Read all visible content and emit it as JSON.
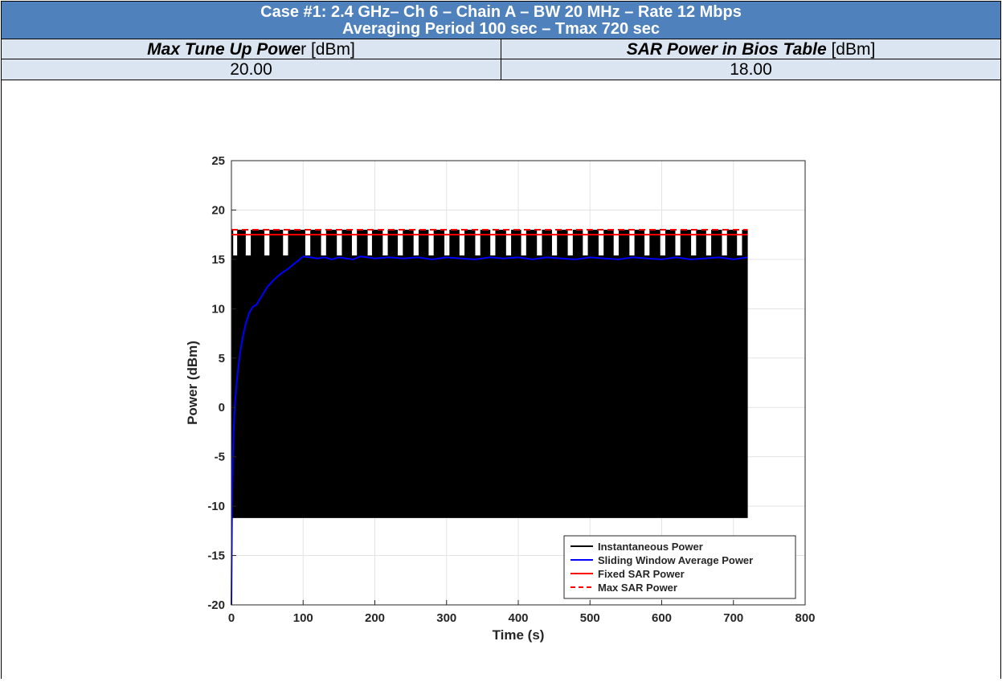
{
  "header": {
    "line1": "Case #1: 2.4 GHz– Ch 6 – Chain A – BW 20 MHz – Rate 12 Mbps",
    "line2": "Averaging Period 100 sec – Tmax 720 sec"
  },
  "columns": {
    "left_label_bold": "Max Tune Up Powe",
    "left_label_rest": "r [dBm]",
    "right_label_bold": "SAR Power in Bios Table",
    "right_label_rest": " [dBm]"
  },
  "values": {
    "left": "20.00",
    "right": "18.00"
  },
  "chart_data": {
    "type": "line",
    "xlabel": "Time (s)",
    "ylabel": "Power (dBm)",
    "xlim": [
      0,
      800
    ],
    "ylim": [
      -20,
      25
    ],
    "xticks": [
      "0",
      "100",
      "200",
      "300",
      "400",
      "500",
      "600",
      "700",
      "800"
    ],
    "yticks": [
      "-20",
      "-15",
      "-10",
      "-5",
      "0",
      "5",
      "10",
      "15",
      "20",
      "25"
    ],
    "grid": true,
    "legend_position": "bottom-right",
    "series": [
      {
        "name": "Instantaneous Power",
        "color": "#000000",
        "style": "solid",
        "description": "rapid toggling between about -11.2 and 15.4 dBm, with periodic bursts up to 18 dBm",
        "low": -11.2,
        "high": 15.4,
        "burst_high": 18.0,
        "x_range": [
          0,
          720
        ],
        "bursts": [
          [
            0,
            2.5
          ],
          [
            8,
            20
          ],
          [
            27,
            46
          ],
          [
            53,
            72
          ],
          [
            79,
            103
          ],
          [
            110,
            125
          ],
          [
            132,
            147
          ],
          [
            154,
            168
          ],
          [
            175,
            190
          ],
          [
            196,
            211
          ],
          [
            218,
            232
          ],
          [
            239,
            254
          ],
          [
            261,
            275
          ],
          [
            282,
            297
          ],
          [
            304,
            318
          ],
          [
            325,
            340
          ],
          [
            347,
            361
          ],
          [
            368,
            383
          ],
          [
            390,
            404
          ],
          [
            411,
            426
          ],
          [
            433,
            447
          ],
          [
            454,
            469
          ],
          [
            476,
            490
          ],
          [
            497,
            512
          ],
          [
            519,
            533
          ],
          [
            540,
            555
          ],
          [
            562,
            576
          ],
          [
            583,
            598
          ],
          [
            605,
            619
          ],
          [
            626,
            641
          ],
          [
            648,
            662
          ],
          [
            669,
            684
          ],
          [
            691,
            705
          ],
          [
            712,
            720
          ]
        ]
      },
      {
        "name": "Sliding Window Average Power",
        "color": "#0000ff",
        "style": "solid",
        "x": [
          0,
          1,
          2,
          3,
          5,
          8,
          12,
          16,
          20,
          25,
          30,
          35,
          40,
          50,
          60,
          70,
          80,
          90,
          100,
          110,
          120,
          130,
          140,
          150,
          160,
          170,
          180,
          190,
          200,
          220,
          240,
          260,
          280,
          300,
          320,
          340,
          360,
          380,
          400,
          420,
          440,
          460,
          480,
          500,
          520,
          540,
          560,
          580,
          600,
          620,
          640,
          660,
          680,
          700,
          720
        ],
        "y": [
          -20,
          -9,
          -5,
          -2.5,
          0.5,
          3,
          5.5,
          7.2,
          8.5,
          9.6,
          10.2,
          10.4,
          11,
          12.2,
          13,
          13.6,
          14.1,
          14.7,
          15.3,
          15.2,
          15.1,
          15.2,
          15.0,
          15.2,
          15.1,
          15.0,
          15.3,
          15.2,
          15.1,
          15.2,
          15.1,
          15.2,
          15.0,
          15.2,
          15.1,
          15.0,
          15.2,
          15.1,
          15.2,
          15.0,
          15.2,
          15.1,
          15.0,
          15.2,
          15.1,
          15.0,
          15.2,
          15.1,
          15.0,
          15.2,
          15.0,
          15.1,
          15.2,
          15.0,
          15.2
        ]
      },
      {
        "name": "Fixed SAR Power",
        "color": "#ff0000",
        "style": "solid",
        "x": [
          0,
          720
        ],
        "y": [
          17.5,
          17.5
        ]
      },
      {
        "name": "Max SAR Power",
        "color": "#ff0000",
        "style": "dashed",
        "x": [
          0,
          720
        ],
        "y": [
          18.0,
          18.0
        ]
      }
    ]
  }
}
